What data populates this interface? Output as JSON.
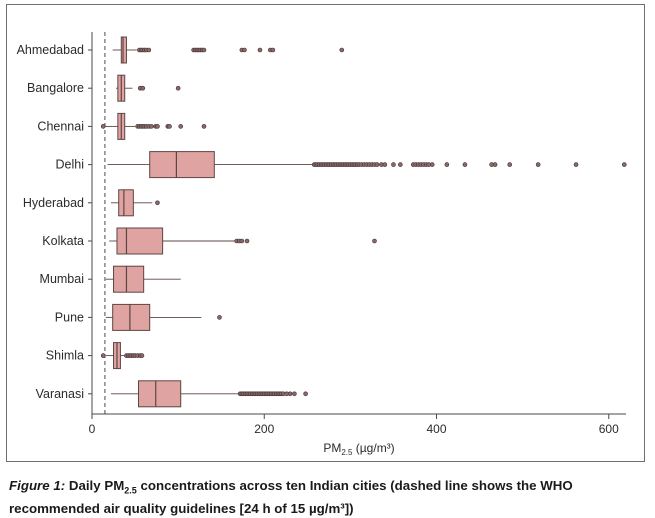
{
  "caption": {
    "label": "Figure 1:",
    "text_before_sub": " Daily PM",
    "sub": "2.5",
    "text_after_sub": " concentrations across ten Indian cities (dashed line shows the WHO recommended air quality guidelines [24 h of 15 µg/m³])"
  },
  "colors": {
    "box_fill": "#dfa3a1",
    "box_stroke": "#5e4544",
    "axis": "#4a4a4a",
    "guideline": "#4a4a4a"
  },
  "chart_data": {
    "type": "boxplot",
    "orientation": "horizontal",
    "xlabel_main": "PM",
    "xlabel_sub": "2.5",
    "xlabel_unit": " (µg/m³)",
    "xlim": [
      0,
      620
    ],
    "xticks": [
      0,
      200,
      400,
      600
    ],
    "grid": false,
    "reference_line": {
      "x": 15,
      "style": "dashed"
    },
    "categories": [
      "Ahmedabad",
      "Bangalore",
      "Chennai",
      "Delhi",
      "Hyderabad",
      "Kolkata",
      "Mumbai",
      "Pune",
      "Shimla",
      "Varanasi"
    ],
    "series": [
      {
        "whislo": 24,
        "q1": 34,
        "med": 36,
        "q3": 40,
        "whishi": 52,
        "fliers": [
          55,
          57,
          59,
          61,
          63,
          66,
          118,
          120,
          122,
          124,
          126,
          128,
          130,
          174,
          177,
          195,
          207,
          210,
          290
        ]
      },
      {
        "whislo": 28,
        "q1": 30,
        "med": 34,
        "q3": 38,
        "whishi": 47,
        "fliers": [
          56,
          59,
          100
        ]
      },
      {
        "whislo": 14,
        "q1": 30,
        "med": 34,
        "q3": 38,
        "whishi": 50,
        "fliers": [
          13,
          53,
          55,
          57,
          59,
          61,
          63,
          66,
          69,
          74,
          76,
          88,
          90,
          103,
          130
        ]
      },
      {
        "whislo": 18,
        "q1": 67,
        "med": 98,
        "q3": 142,
        "whishi": 258,
        "fliers": [
          258,
          260,
          262,
          264,
          266,
          268,
          270,
          272,
          274,
          276,
          278,
          280,
          282,
          284,
          286,
          288,
          290,
          292,
          294,
          296,
          298,
          300,
          302,
          304,
          306,
          308,
          310,
          313,
          316,
          319,
          322,
          325,
          328,
          331,
          336,
          340,
          350,
          358,
          373,
          376,
          379,
          382,
          385,
          388,
          391,
          395,
          412,
          433,
          464,
          468,
          485,
          518,
          562,
          618
        ]
      },
      {
        "whislo": 22,
        "q1": 31,
        "med": 37,
        "q3": 48,
        "whishi": 70,
        "fliers": [
          76
        ]
      },
      {
        "whislo": 20,
        "q1": 29,
        "med": 40,
        "q3": 82,
        "whishi": 168,
        "fliers": [
          168,
          171,
          174,
          180,
          328
        ]
      },
      {
        "whislo": 16,
        "q1": 25,
        "med": 40,
        "q3": 60,
        "whishi": 103,
        "fliers": []
      },
      {
        "whislo": 16,
        "q1": 24,
        "med": 44,
        "q3": 67,
        "whishi": 127,
        "fliers": [
          148
        ]
      },
      {
        "whislo": 16,
        "q1": 25,
        "med": 29,
        "q3": 33,
        "whishi": 39,
        "fliers": [
          13,
          40,
          42,
          44,
          46,
          48,
          50,
          53,
          56,
          58
        ]
      },
      {
        "whislo": 22,
        "q1": 54,
        "med": 74,
        "q3": 103,
        "whishi": 172,
        "fliers": [
          172,
          174,
          176,
          178,
          180,
          182,
          184,
          186,
          188,
          190,
          192,
          194,
          196,
          198,
          200,
          202,
          204,
          206,
          208,
          210,
          212,
          214,
          216,
          218,
          220,
          222,
          226,
          230,
          235,
          248
        ]
      }
    ]
  }
}
